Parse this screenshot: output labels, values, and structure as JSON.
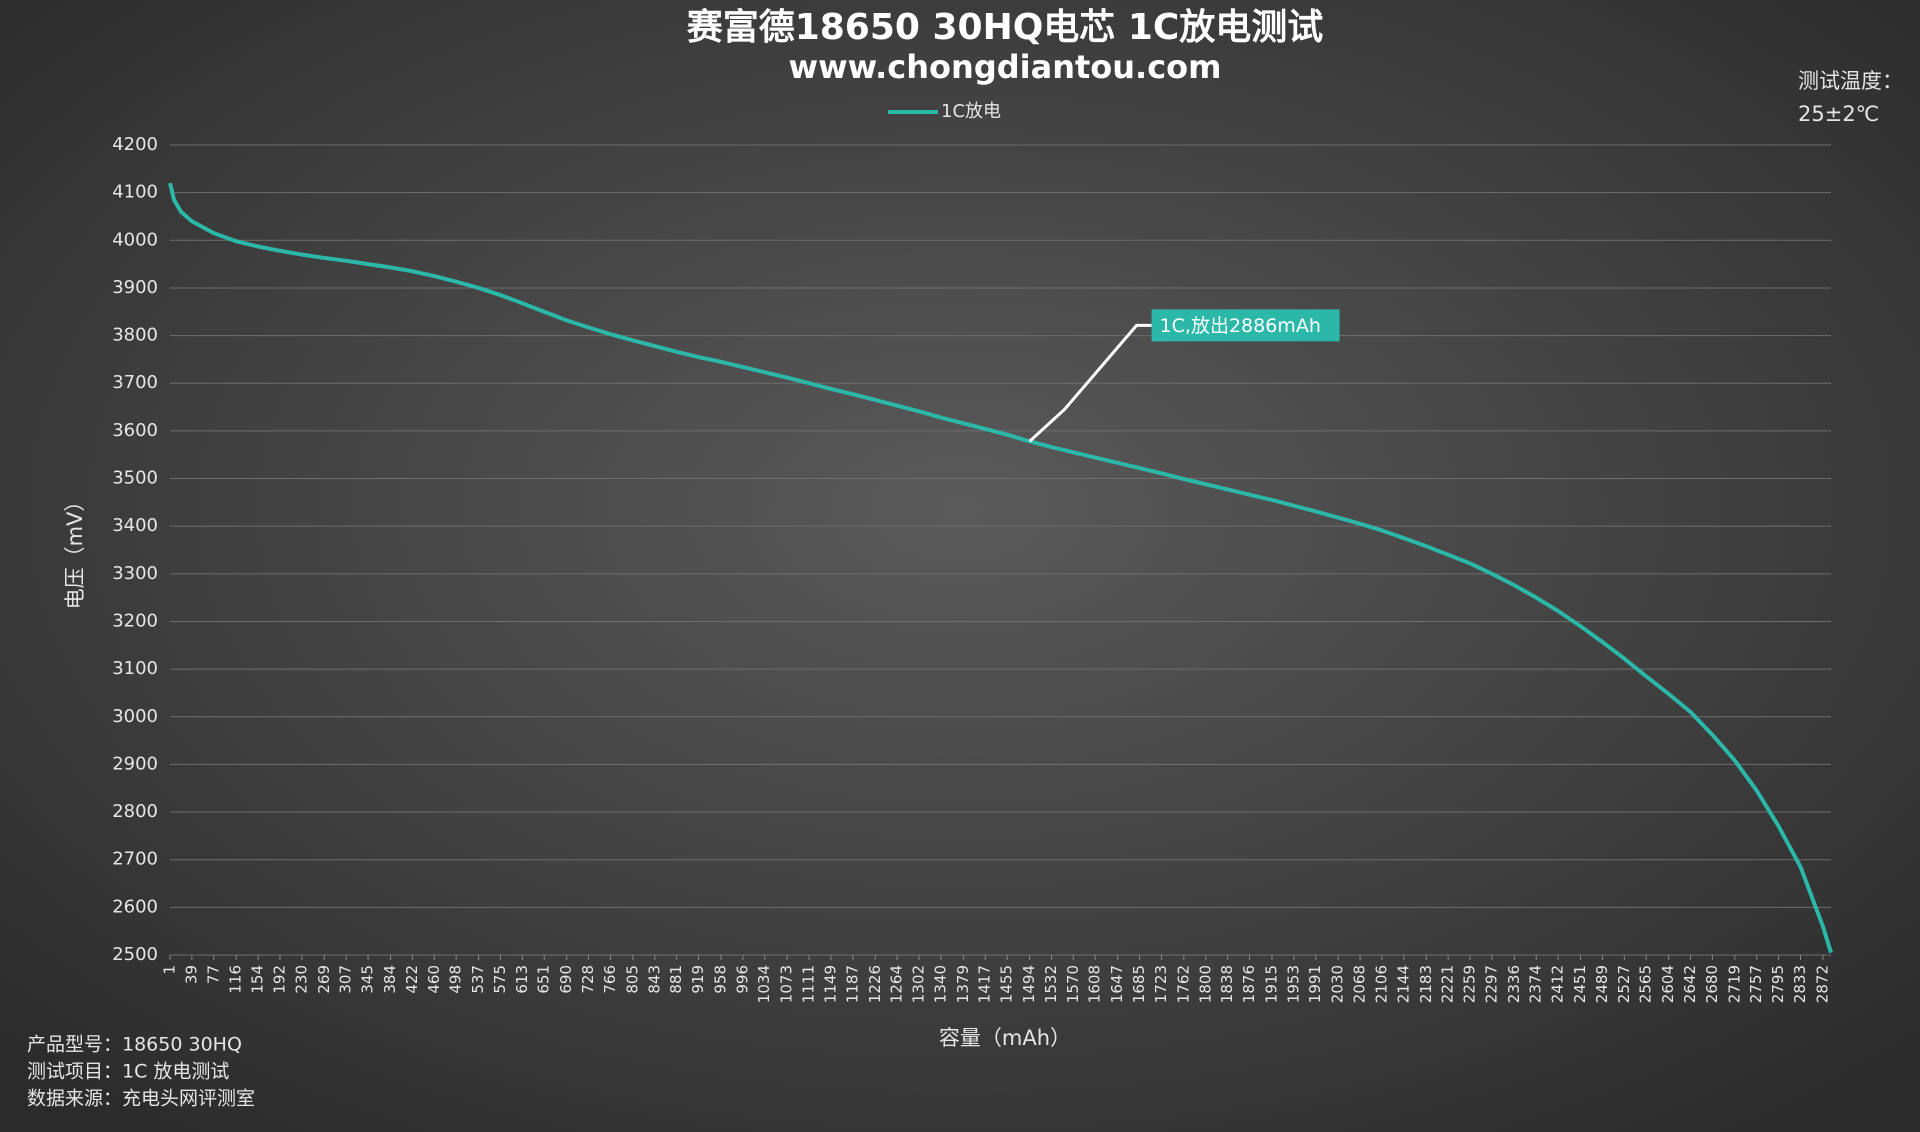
{
  "chart_data": {
    "type": "line",
    "title": "赛富德18650 30HQ电芯 1C放电测试",
    "subtitle": "www.chongdiantou.com",
    "x_label": "容量（mAh）",
    "y_label": "电压（mV）",
    "notes": [
      "测试温度：",
      "25±2℃"
    ],
    "footnotes": [
      "产品型号：18650 30HQ",
      "测试项目：1C 放电测试",
      "数据来源：充电头网评测室"
    ],
    "annotations": [
      {
        "text": "1C,放出2886mAh"
      }
    ],
    "grid": true,
    "xlim": [
      1,
      2886
    ],
    "ylim": [
      2500,
      4200
    ],
    "yticks": [
      2500,
      2600,
      2700,
      2800,
      2900,
      3000,
      3100,
      3200,
      3300,
      3400,
      3500,
      3600,
      3700,
      3800,
      3900,
      4000,
      4100,
      4200
    ],
    "xticks": [
      1,
      39,
      77,
      116,
      154,
      192,
      230,
      269,
      307,
      345,
      384,
      422,
      460,
      498,
      537,
      575,
      613,
      651,
      690,
      728,
      766,
      805,
      843,
      881,
      919,
      958,
      996,
      1034,
      1073,
      1111,
      1149,
      1187,
      1226,
      1264,
      1302,
      1340,
      1379,
      1417,
      1455,
      1494,
      1532,
      1570,
      1608,
      1647,
      1685,
      1723,
      1762,
      1800,
      1838,
      1876,
      1915,
      1953,
      1991,
      2030,
      2068,
      2106,
      2144,
      2183,
      2221,
      2259,
      2297,
      2336,
      2374,
      2412,
      2451,
      2489,
      2527,
      2565,
      2604,
      2642,
      2680,
      2719,
      2757,
      2795,
      2833,
      2872
    ],
    "x": [
      1,
      8,
      20,
      39,
      77,
      116,
      154,
      192,
      230,
      269,
      307,
      345,
      384,
      422,
      460,
      498,
      537,
      575,
      613,
      651,
      690,
      728,
      766,
      805,
      843,
      881,
      919,
      958,
      996,
      1034,
      1073,
      1111,
      1149,
      1187,
      1226,
      1264,
      1302,
      1340,
      1379,
      1417,
      1455,
      1494,
      1532,
      1570,
      1608,
      1647,
      1685,
      1723,
      1762,
      1800,
      1838,
      1876,
      1915,
      1953,
      1991,
      2030,
      2068,
      2106,
      2144,
      2183,
      2221,
      2259,
      2297,
      2336,
      2374,
      2412,
      2451,
      2489,
      2527,
      2565,
      2604,
      2642,
      2680,
      2719,
      2757,
      2795,
      2833,
      2872,
      2886
    ],
    "series": [
      {
        "name": "1C放电",
        "color": "#2bb8a8",
        "values": [
          4120,
          4085,
          4060,
          4040,
          4015,
          3998,
          3987,
          3978,
          3970,
          3963,
          3957,
          3950,
          3943,
          3935,
          3925,
          3913,
          3900,
          3885,
          3868,
          3850,
          3832,
          3817,
          3803,
          3790,
          3778,
          3766,
          3755,
          3745,
          3734,
          3723,
          3712,
          3700,
          3688,
          3677,
          3665,
          3653,
          3641,
          3628,
          3616,
          3604,
          3592,
          3578,
          3566,
          3555,
          3544,
          3533,
          3522,
          3511,
          3499,
          3488,
          3477,
          3466,
          3455,
          3443,
          3431,
          3418,
          3405,
          3391,
          3375,
          3358,
          3340,
          3322,
          3300,
          3276,
          3250,
          3222,
          3190,
          3157,
          3122,
          3085,
          3048,
          3010,
          2962,
          2908,
          2845,
          2770,
          2685,
          2560,
          2505
        ]
      }
    ]
  }
}
